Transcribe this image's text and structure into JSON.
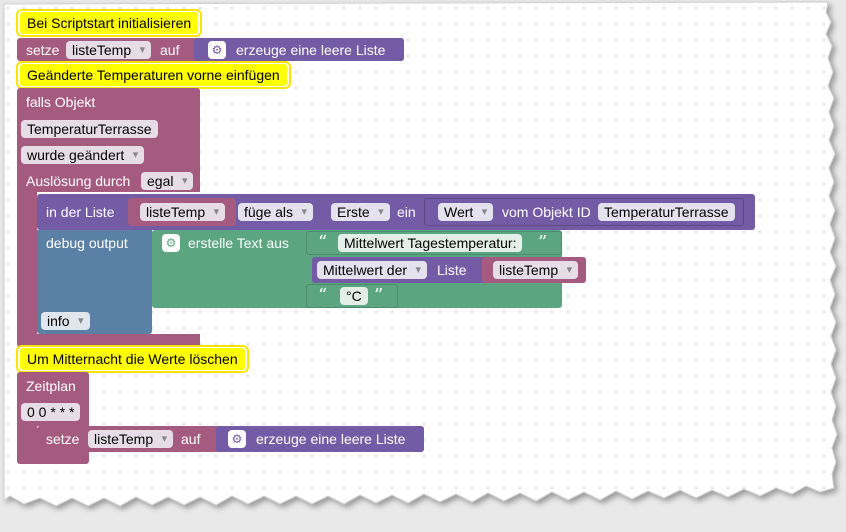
{
  "comments": {
    "init": "Bei Scriptstart initialisieren",
    "insert": "Geänderte Temperaturen vorne einfügen",
    "midnight": "Um Mitternacht die Werte löschen"
  },
  "set_init": {
    "keyword": "setze",
    "variable": "listeTemp",
    "to_label": "auf",
    "create_label": "erzeuge eine leere Liste"
  },
  "trigger": {
    "if_object_label": "falls Objekt",
    "object_id": "TemperaturTerrasse",
    "condition": "wurde geändert",
    "trigger_by_label": "Auslösung durch",
    "trigger_by_value": "egal"
  },
  "list_insert": {
    "in_list_label": "in der Liste",
    "variable": "listeTemp",
    "mode": "füge als",
    "position": "Erste",
    "a_label": "ein",
    "value_field": "Wert",
    "of_object_label": "vom Objekt ID",
    "object_id": "TemperaturTerrasse"
  },
  "debug": {
    "label": "debug output",
    "create_text_label": "erstelle Text aus",
    "text1": "Mittelwert Tagestemperatur:",
    "mean_label": "Mittelwert der",
    "list_label": "Liste",
    "list_var": "listeTemp",
    "text2": "°C",
    "level": "info"
  },
  "schedule": {
    "label": "Zeitplan",
    "cron": "0 0 * * *"
  },
  "set_reset": {
    "keyword": "setze",
    "variable": "listeTemp",
    "to_label": "auf",
    "create_label": "erzeuge eine leere Liste"
  },
  "colors": {
    "event_block": "#a55b80",
    "variable_block": "#a55b80",
    "list_block": "#745ba5",
    "text_block": "#5ba580",
    "debug_block": "#5b80a5",
    "comment": "#ffff00"
  }
}
